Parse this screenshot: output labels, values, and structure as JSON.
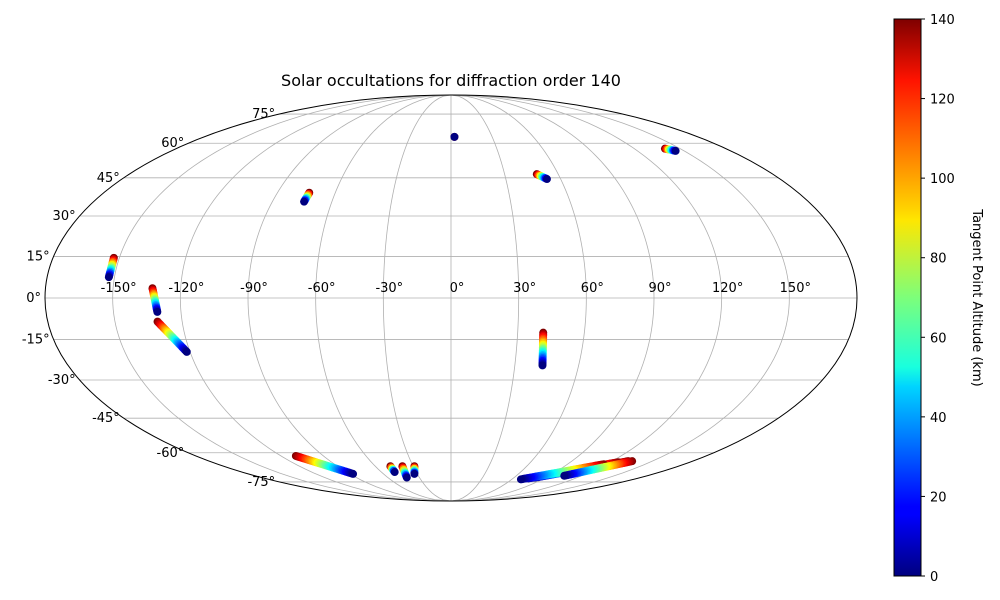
{
  "chart_data": {
    "type": "scatter",
    "projection": "mollweide",
    "title": "Solar occultations for diffraction order 140",
    "x_tick_labels": [
      "-150°",
      "-120°",
      "-90°",
      "-60°",
      "-30°",
      "0°",
      "30°",
      "60°",
      "90°",
      "120°",
      "150°"
    ],
    "x_ticks": [
      -150,
      -120,
      -90,
      -60,
      -30,
      0,
      30,
      60,
      90,
      120,
      150
    ],
    "y_tick_labels": [
      "-75°",
      "-60°",
      "-45°",
      "-30°",
      "-15°",
      "0°",
      "15°",
      "30°",
      "45°",
      "60°",
      "75°"
    ],
    "y_ticks": [
      -75,
      -60,
      -45,
      -30,
      -15,
      0,
      15,
      30,
      45,
      60,
      75
    ],
    "grid": true,
    "colorbar": {
      "label": "Tangent Point Altitude (km)",
      "ticks": [
        0,
        20,
        40,
        60,
        80,
        100,
        120,
        140
      ],
      "tick_labels": [
        "0",
        "20",
        "40",
        "60",
        "80",
        "100",
        "120",
        "140"
      ],
      "range": [
        0,
        140
      ],
      "colormap": "jet"
    },
    "tracks": [
      {
        "lon_start": -152.5,
        "lat_start": 14.5,
        "lon_end": -152.5,
        "lat_end": 7.5
      },
      {
        "lon_start": -132.5,
        "lat_start": 3.5,
        "lon_end": -130.5,
        "lat_end": -5.0
      },
      {
        "lon_start": -131.0,
        "lat_start": -8.5,
        "lon_end": -121.5,
        "lat_end": -19.5
      },
      {
        "lon_start": -73.5,
        "lat_start": 39.0,
        "lon_end": -74.0,
        "lat_end": 35.5
      },
      {
        "lon_start": 2.5,
        "lat_start": 63.0,
        "lon_end": 2.5,
        "lat_end": 63.0
      },
      {
        "lon_start": 48.0,
        "lat_start": 46.5,
        "lon_end": 52.5,
        "lat_end": 44.5
      },
      {
        "lon_start": 140.0,
        "lat_start": 57.5,
        "lon_end": 144.5,
        "lat_end": 56.5
      },
      {
        "lon_start": 41.5,
        "lat_start": -12.5,
        "lon_end": 43.0,
        "lat_end": -24.5
      },
      {
        "lon_start": -109.5,
        "lat_start": -61.5,
        "lon_end": -87.0,
        "lat_end": -70.5
      },
      {
        "lon_start": -48.0,
        "lat_start": -66.5,
        "lon_end": -48.5,
        "lat_end": -69.5
      },
      {
        "lon_start": -38.5,
        "lat_start": -66.5,
        "lon_end": -42.0,
        "lat_end": -72.5
      },
      {
        "lon_start": -29.0,
        "lat_start": -66.5,
        "lon_end": -32.5,
        "lat_end": -70.5
      },
      {
        "lon_start": 132.0,
        "lat_start": -64.0,
        "lon_end": 80.0,
        "lat_end": -72.5
      },
      {
        "lon_start": 126.0,
        "lat_start": -64.5,
        "lon_end": 75.0,
        "lat_end": -73.0
      },
      {
        "lon_start": 118.0,
        "lat_start": -65.5,
        "lon_end": 69.0,
        "lat_end": -73.5
      },
      {
        "lon_start": 135.0,
        "lat_start": -64.0,
        "lon_end": 104.0,
        "lat_end": -71.5
      }
    ]
  }
}
